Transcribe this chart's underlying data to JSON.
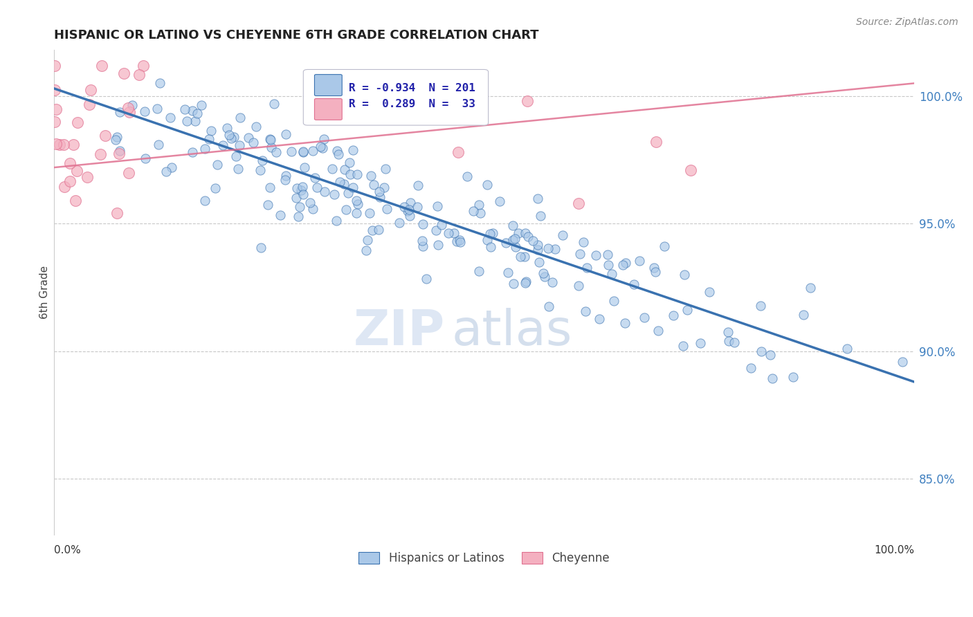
{
  "title": "HISPANIC OR LATINO VS CHEYENNE 6TH GRADE CORRELATION CHART",
  "source_text": "Source: ZipAtlas.com",
  "ylabel": "6th Grade",
  "ytick_labels": [
    "85.0%",
    "90.0%",
    "95.0%",
    "100.0%"
  ],
  "ytick_values": [
    0.85,
    0.9,
    0.95,
    1.0
  ],
  "xlim": [
    0.0,
    1.0
  ],
  "ylim": [
    0.828,
    1.018
  ],
  "blue_R": -0.934,
  "blue_N": 201,
  "pink_R": 0.289,
  "pink_N": 33,
  "blue_color": "#aac8e8",
  "blue_line_color": "#3a72b0",
  "pink_color": "#f4b0c0",
  "pink_line_color": "#e07090",
  "watermark_zip": "ZIP",
  "watermark_atlas": "atlas",
  "blue_scatter_seed": 42,
  "pink_scatter_seed": 7,
  "legend_blue_label": "Hispanics or Latinos",
  "legend_pink_label": "Cheyenne",
  "bottom_left": "0.0%",
  "bottom_right": "100.0%"
}
